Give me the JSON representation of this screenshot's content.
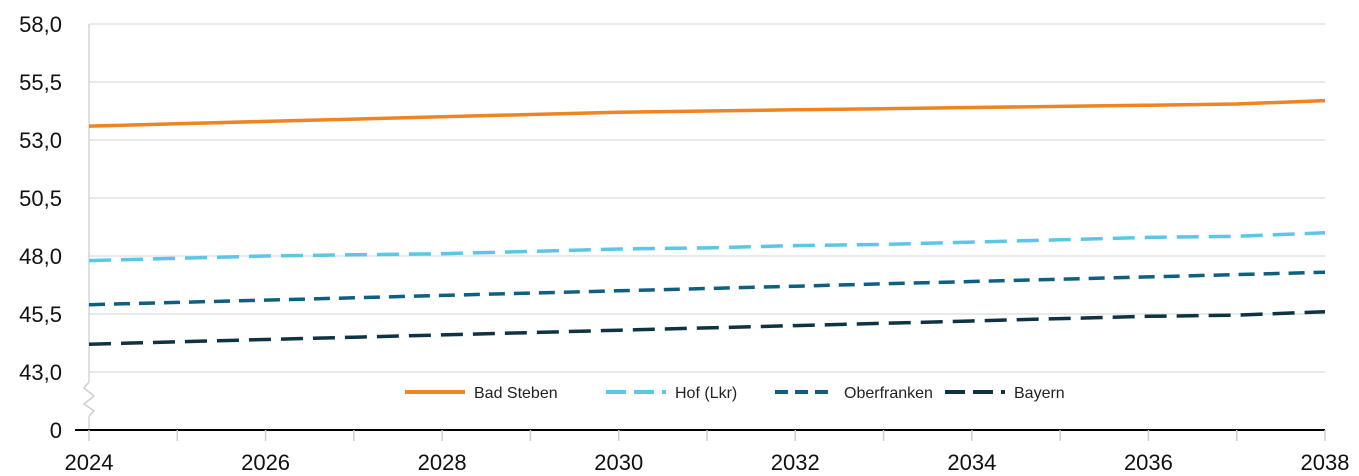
{
  "chart_data": {
    "type": "line",
    "x": [
      2024,
      2025,
      2026,
      2027,
      2028,
      2029,
      2030,
      2031,
      2032,
      2033,
      2034,
      2035,
      2036,
      2037,
      2038
    ],
    "x_tick_labels": [
      "2024",
      "2026",
      "2028",
      "2030",
      "2032",
      "2034",
      "2036",
      "2038"
    ],
    "y_tick_labels": [
      "0",
      "43,0",
      "45,5",
      "48,0",
      "50,5",
      "53,0",
      "55,5",
      "58,0"
    ],
    "ylim": [
      43.0,
      58.0
    ],
    "y_axis_break": true,
    "grid": true,
    "legend_position": "bottom-center",
    "series": [
      {
        "name": "Bad Steben",
        "color": "#EE8423",
        "style": "solid",
        "values": [
          53.6,
          53.7,
          53.8,
          53.9,
          54.0,
          54.1,
          54.2,
          54.25,
          54.3,
          54.35,
          54.4,
          54.45,
          54.5,
          54.55,
          54.7
        ]
      },
      {
        "name": "Hof (Lkr)",
        "color": "#5CC6E6",
        "style": "long-dash",
        "values": [
          47.8,
          47.9,
          48.0,
          48.05,
          48.1,
          48.2,
          48.3,
          48.35,
          48.45,
          48.5,
          48.6,
          48.7,
          48.8,
          48.85,
          49.0
        ]
      },
      {
        "name": "Oberfranken",
        "color": "#0F5F80",
        "style": "dash",
        "values": [
          45.9,
          46.0,
          46.1,
          46.2,
          46.3,
          46.4,
          46.5,
          46.6,
          46.7,
          46.8,
          46.9,
          47.0,
          47.1,
          47.2,
          47.3
        ]
      },
      {
        "name": "Bayern",
        "color": "#0E3345",
        "style": "long-dash",
        "values": [
          44.2,
          44.3,
          44.4,
          44.5,
          44.6,
          44.7,
          44.8,
          44.9,
          45.0,
          45.1,
          45.2,
          45.3,
          45.4,
          45.45,
          45.6
        ]
      }
    ]
  }
}
